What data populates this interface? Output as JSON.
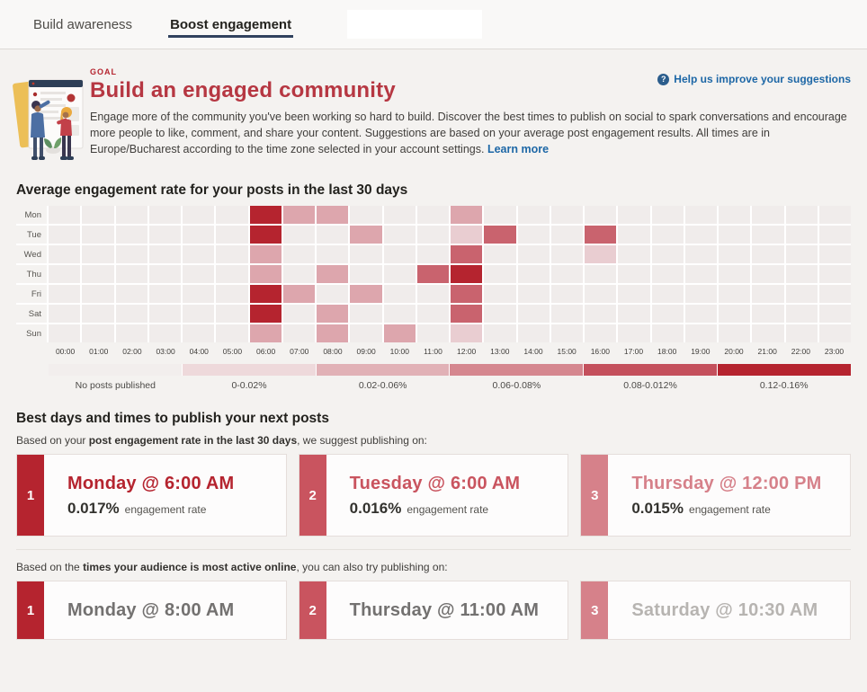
{
  "tabs": [
    {
      "label": "Build awareness",
      "active": false
    },
    {
      "label": "Boost engagement",
      "active": true
    }
  ],
  "help_link_label": "Help us improve your suggestions",
  "goal": {
    "label": "GOAL",
    "title": "Build an engaged community",
    "description": "Engage more of the community you've been working so hard to build. Discover the best times to publish on social to spark conversations and encourage more people to like, comment, and share your content. Suggestions are based on your average post engagement results. All times are in Europe/Bucharest according to the time zone selected in your account settings.",
    "learn_more": "Learn more"
  },
  "chart_data": {
    "type": "heatmap",
    "title": "Average engagement rate for your posts in the last 30 days",
    "x_labels": [
      "00:00",
      "01:00",
      "02:00",
      "03:00",
      "04:00",
      "05:00",
      "06:00",
      "07:00",
      "08:00",
      "09:00",
      "10:00",
      "11:00",
      "12:00",
      "13:00",
      "14:00",
      "15:00",
      "16:00",
      "17:00",
      "18:00",
      "19:00",
      "20:00",
      "21:00",
      "22:00",
      "23:00"
    ],
    "y_labels": [
      "Mon",
      "Tue",
      "Wed",
      "Thu",
      "Fri",
      "Sat",
      "Sun"
    ],
    "level_colors": [
      "#f0eceb",
      "#e9cdd1",
      "#dda6ad",
      "#d5878f",
      "#c9636e",
      "#b5242f"
    ],
    "matrix": [
      [
        0,
        0,
        0,
        0,
        0,
        0,
        5,
        2,
        2,
        0,
        0,
        0,
        2,
        0,
        0,
        0,
        0,
        0,
        0,
        0,
        0,
        0,
        0,
        0
      ],
      [
        0,
        0,
        0,
        0,
        0,
        0,
        5,
        0,
        0,
        2,
        0,
        0,
        1,
        4,
        0,
        0,
        4,
        0,
        0,
        0,
        0,
        0,
        0,
        0
      ],
      [
        0,
        0,
        0,
        0,
        0,
        0,
        2,
        0,
        0,
        0,
        0,
        0,
        4,
        0,
        0,
        0,
        1,
        0,
        0,
        0,
        0,
        0,
        0,
        0
      ],
      [
        0,
        0,
        0,
        0,
        0,
        0,
        2,
        0,
        2,
        0,
        0,
        4,
        5,
        0,
        0,
        0,
        0,
        0,
        0,
        0,
        0,
        0,
        0,
        0
      ],
      [
        0,
        0,
        0,
        0,
        0,
        0,
        5,
        2,
        0,
        2,
        0,
        0,
        4,
        0,
        0,
        0,
        0,
        0,
        0,
        0,
        0,
        0,
        0,
        0
      ],
      [
        0,
        0,
        0,
        0,
        0,
        0,
        5,
        0,
        2,
        0,
        0,
        0,
        4,
        0,
        0,
        0,
        0,
        0,
        0,
        0,
        0,
        0,
        0,
        0
      ],
      [
        0,
        0,
        0,
        0,
        0,
        0,
        2,
        0,
        2,
        0,
        2,
        0,
        1,
        0,
        0,
        0,
        0,
        0,
        0,
        0,
        0,
        0,
        0,
        0
      ]
    ],
    "legend": [
      {
        "label": "No posts published",
        "color": "#f2eeed"
      },
      {
        "label": "0-0.02%",
        "color": "#eed9db"
      },
      {
        "label": "0.02-0.06%",
        "color": "#e1b1b6"
      },
      {
        "label": "0.06-0.08%",
        "color": "#d5878f"
      },
      {
        "label": "0.08-0.012%",
        "color": "#c4505c"
      },
      {
        "label": "0.12-0.16%",
        "color": "#b5242f"
      }
    ]
  },
  "suggestions": {
    "heading": "Best days and times to publish your next posts",
    "row1": {
      "prefix": "Based on your ",
      "bold": "post engagement rate in the last 30 days",
      "suffix": ", we suggest publishing on:",
      "cards": [
        {
          "rank": "1",
          "title": "Monday @ 6:00 AM",
          "rate": "0.017%",
          "rate_label": "engagement rate",
          "accent": "#b5242f",
          "title_color": "#b5242f"
        },
        {
          "rank": "2",
          "title": "Tuesday @ 6:00 AM",
          "rate": "0.016%",
          "rate_label": "engagement rate",
          "accent": "#c9545f",
          "title_color": "#c9545f"
        },
        {
          "rank": "3",
          "title": "Thursday @ 12:00 PM",
          "rate": "0.015%",
          "rate_label": "engagement rate",
          "accent": "#d6818a",
          "title_color": "#d6818a"
        }
      ]
    },
    "row2": {
      "prefix": "Based on the ",
      "bold": "times your audience is most active online",
      "suffix": ", you can also try publishing on:",
      "cards": [
        {
          "rank": "1",
          "title": "Monday @ 8:00 AM",
          "accent": "#b5242f",
          "title_color": "#737170"
        },
        {
          "rank": "2",
          "title": "Thursday @ 11:00 AM",
          "accent": "#c9545f",
          "title_color": "#737170"
        },
        {
          "rank": "3",
          "title": "Saturday @ 10:30 AM",
          "accent": "#d6818a",
          "title_color": "#b7b4b1"
        }
      ]
    }
  }
}
